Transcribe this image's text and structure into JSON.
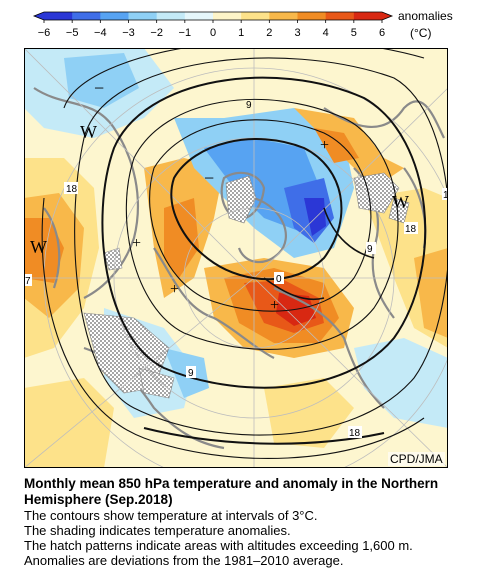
{
  "legend": {
    "title": "anomalies",
    "unit": "(°C)",
    "ticks": [
      "−6",
      "−5",
      "−4",
      "−3",
      "−2",
      "−1",
      "0",
      "1",
      "2",
      "3",
      "4",
      "5",
      "6"
    ],
    "colors": [
      "#2b37d6",
      "#3f6ee8",
      "#57a3f2",
      "#8fd0f5",
      "#c4eaf7",
      "#e6f7fb",
      "#fdf4c8",
      "#fde28a",
      "#f8b84a",
      "#f08c24",
      "#e85818",
      "#d82812"
    ]
  },
  "map": {
    "contour_labels": [
      "18",
      "9",
      "0",
      "9",
      "18",
      "18",
      "9",
      "1",
      "7"
    ],
    "high_low_marks": [
      "W",
      "W",
      "W",
      "+",
      "+",
      "+",
      "+",
      "−",
      "−"
    ]
  },
  "credit": "CPD/JMA",
  "caption": {
    "title_line1": "Monthly mean 850 hPa temperature and anomaly in the Northern",
    "title_line2": "Hemisphere (Sep.2018)",
    "lines": [
      "The contours show temperature at intervals of 3°C.",
      "The shading indicates temperature anomalies.",
      "The hatch patterns indicate areas with altitudes exceeding 1,600 m.",
      "Anomalies are deviations from the 1981–2010 average."
    ]
  }
}
